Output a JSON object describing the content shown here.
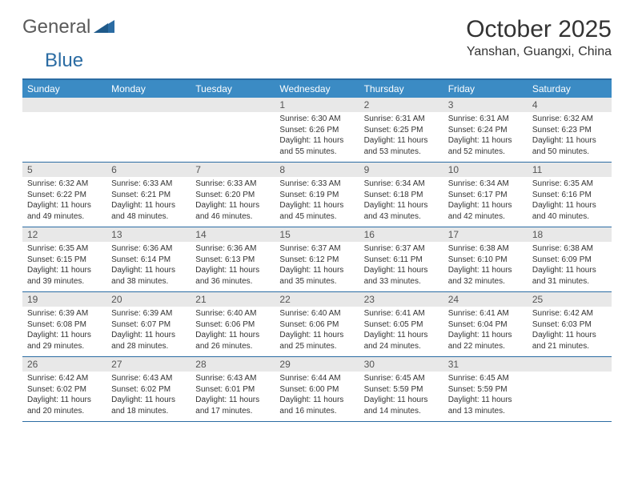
{
  "logo": {
    "text1": "General",
    "text2": "Blue"
  },
  "title": "October 2025",
  "location": "Yanshan, Guangxi, China",
  "colors": {
    "header_bg": "#3b8bc4",
    "border": "#2b6ca3",
    "daynum_bg": "#e8e8e8",
    "text": "#333333",
    "logo_gray": "#5a5a5a",
    "logo_blue": "#2b6ca3"
  },
  "day_names": [
    "Sunday",
    "Monday",
    "Tuesday",
    "Wednesday",
    "Thursday",
    "Friday",
    "Saturday"
  ],
  "weeks": [
    [
      {
        "n": "",
        "lines": []
      },
      {
        "n": "",
        "lines": []
      },
      {
        "n": "",
        "lines": []
      },
      {
        "n": "1",
        "lines": [
          "Sunrise: 6:30 AM",
          "Sunset: 6:26 PM",
          "Daylight: 11 hours and 55 minutes."
        ]
      },
      {
        "n": "2",
        "lines": [
          "Sunrise: 6:31 AM",
          "Sunset: 6:25 PM",
          "Daylight: 11 hours and 53 minutes."
        ]
      },
      {
        "n": "3",
        "lines": [
          "Sunrise: 6:31 AM",
          "Sunset: 6:24 PM",
          "Daylight: 11 hours and 52 minutes."
        ]
      },
      {
        "n": "4",
        "lines": [
          "Sunrise: 6:32 AM",
          "Sunset: 6:23 PM",
          "Daylight: 11 hours and 50 minutes."
        ]
      }
    ],
    [
      {
        "n": "5",
        "lines": [
          "Sunrise: 6:32 AM",
          "Sunset: 6:22 PM",
          "Daylight: 11 hours and 49 minutes."
        ]
      },
      {
        "n": "6",
        "lines": [
          "Sunrise: 6:33 AM",
          "Sunset: 6:21 PM",
          "Daylight: 11 hours and 48 minutes."
        ]
      },
      {
        "n": "7",
        "lines": [
          "Sunrise: 6:33 AM",
          "Sunset: 6:20 PM",
          "Daylight: 11 hours and 46 minutes."
        ]
      },
      {
        "n": "8",
        "lines": [
          "Sunrise: 6:33 AM",
          "Sunset: 6:19 PM",
          "Daylight: 11 hours and 45 minutes."
        ]
      },
      {
        "n": "9",
        "lines": [
          "Sunrise: 6:34 AM",
          "Sunset: 6:18 PM",
          "Daylight: 11 hours and 43 minutes."
        ]
      },
      {
        "n": "10",
        "lines": [
          "Sunrise: 6:34 AM",
          "Sunset: 6:17 PM",
          "Daylight: 11 hours and 42 minutes."
        ]
      },
      {
        "n": "11",
        "lines": [
          "Sunrise: 6:35 AM",
          "Sunset: 6:16 PM",
          "Daylight: 11 hours and 40 minutes."
        ]
      }
    ],
    [
      {
        "n": "12",
        "lines": [
          "Sunrise: 6:35 AM",
          "Sunset: 6:15 PM",
          "Daylight: 11 hours and 39 minutes."
        ]
      },
      {
        "n": "13",
        "lines": [
          "Sunrise: 6:36 AM",
          "Sunset: 6:14 PM",
          "Daylight: 11 hours and 38 minutes."
        ]
      },
      {
        "n": "14",
        "lines": [
          "Sunrise: 6:36 AM",
          "Sunset: 6:13 PM",
          "Daylight: 11 hours and 36 minutes."
        ]
      },
      {
        "n": "15",
        "lines": [
          "Sunrise: 6:37 AM",
          "Sunset: 6:12 PM",
          "Daylight: 11 hours and 35 minutes."
        ]
      },
      {
        "n": "16",
        "lines": [
          "Sunrise: 6:37 AM",
          "Sunset: 6:11 PM",
          "Daylight: 11 hours and 33 minutes."
        ]
      },
      {
        "n": "17",
        "lines": [
          "Sunrise: 6:38 AM",
          "Sunset: 6:10 PM",
          "Daylight: 11 hours and 32 minutes."
        ]
      },
      {
        "n": "18",
        "lines": [
          "Sunrise: 6:38 AM",
          "Sunset: 6:09 PM",
          "Daylight: 11 hours and 31 minutes."
        ]
      }
    ],
    [
      {
        "n": "19",
        "lines": [
          "Sunrise: 6:39 AM",
          "Sunset: 6:08 PM",
          "Daylight: 11 hours and 29 minutes."
        ]
      },
      {
        "n": "20",
        "lines": [
          "Sunrise: 6:39 AM",
          "Sunset: 6:07 PM",
          "Daylight: 11 hours and 28 minutes."
        ]
      },
      {
        "n": "21",
        "lines": [
          "Sunrise: 6:40 AM",
          "Sunset: 6:06 PM",
          "Daylight: 11 hours and 26 minutes."
        ]
      },
      {
        "n": "22",
        "lines": [
          "Sunrise: 6:40 AM",
          "Sunset: 6:06 PM",
          "Daylight: 11 hours and 25 minutes."
        ]
      },
      {
        "n": "23",
        "lines": [
          "Sunrise: 6:41 AM",
          "Sunset: 6:05 PM",
          "Daylight: 11 hours and 24 minutes."
        ]
      },
      {
        "n": "24",
        "lines": [
          "Sunrise: 6:41 AM",
          "Sunset: 6:04 PM",
          "Daylight: 11 hours and 22 minutes."
        ]
      },
      {
        "n": "25",
        "lines": [
          "Sunrise: 6:42 AM",
          "Sunset: 6:03 PM",
          "Daylight: 11 hours and 21 minutes."
        ]
      }
    ],
    [
      {
        "n": "26",
        "lines": [
          "Sunrise: 6:42 AM",
          "Sunset: 6:02 PM",
          "Daylight: 11 hours and 20 minutes."
        ]
      },
      {
        "n": "27",
        "lines": [
          "Sunrise: 6:43 AM",
          "Sunset: 6:02 PM",
          "Daylight: 11 hours and 18 minutes."
        ]
      },
      {
        "n": "28",
        "lines": [
          "Sunrise: 6:43 AM",
          "Sunset: 6:01 PM",
          "Daylight: 11 hours and 17 minutes."
        ]
      },
      {
        "n": "29",
        "lines": [
          "Sunrise: 6:44 AM",
          "Sunset: 6:00 PM",
          "Daylight: 11 hours and 16 minutes."
        ]
      },
      {
        "n": "30",
        "lines": [
          "Sunrise: 6:45 AM",
          "Sunset: 5:59 PM",
          "Daylight: 11 hours and 14 minutes."
        ]
      },
      {
        "n": "31",
        "lines": [
          "Sunrise: 6:45 AM",
          "Sunset: 5:59 PM",
          "Daylight: 11 hours and 13 minutes."
        ]
      },
      {
        "n": "",
        "lines": []
      }
    ]
  ]
}
